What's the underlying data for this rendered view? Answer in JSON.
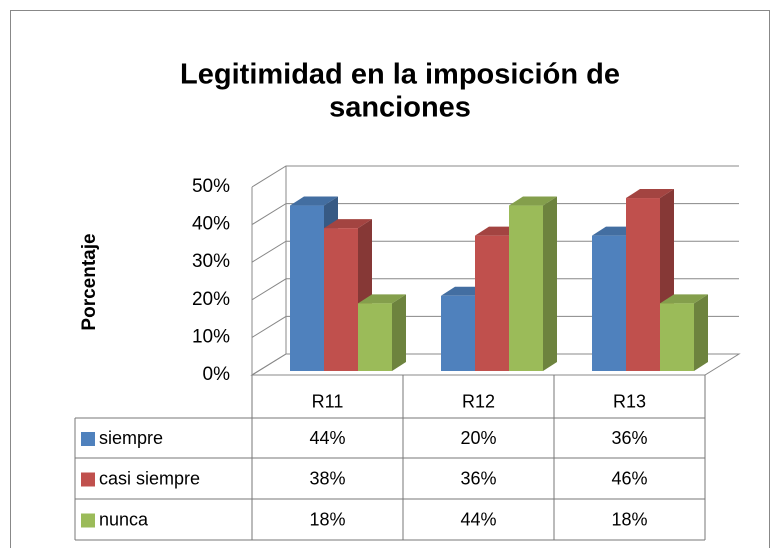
{
  "chart_data": {
    "type": "bar3d",
    "title": "Legitimidad en la imposición de sanciones",
    "y_label": "Porcentaje",
    "categories": [
      "R11",
      "R12",
      "R13"
    ],
    "series": [
      {
        "name": "siempre",
        "color": "#4f81bd",
        "values": [
          44,
          20,
          36
        ],
        "value_labels": [
          "44%",
          "20%",
          "36%"
        ]
      },
      {
        "name": "casi siempre",
        "color": "#c0504d",
        "values": [
          38,
          36,
          46
        ],
        "value_labels": [
          "38%",
          "36%",
          "46%"
        ]
      },
      {
        "name": "nunca",
        "color": "#9bbb59",
        "values": [
          18,
          44,
          18
        ],
        "value_labels": [
          "18%",
          "44%",
          "18%"
        ]
      }
    ],
    "ylim": [
      0,
      50
    ],
    "yticks": [
      {
        "value": 0,
        "label": "0%"
      },
      {
        "value": 10,
        "label": "10%"
      },
      {
        "value": 20,
        "label": "20%"
      },
      {
        "value": 30,
        "label": "30%"
      },
      {
        "value": 40,
        "label": "40%"
      },
      {
        "value": 50,
        "label": "50%"
      }
    ],
    "grid": true,
    "data_table": true
  }
}
